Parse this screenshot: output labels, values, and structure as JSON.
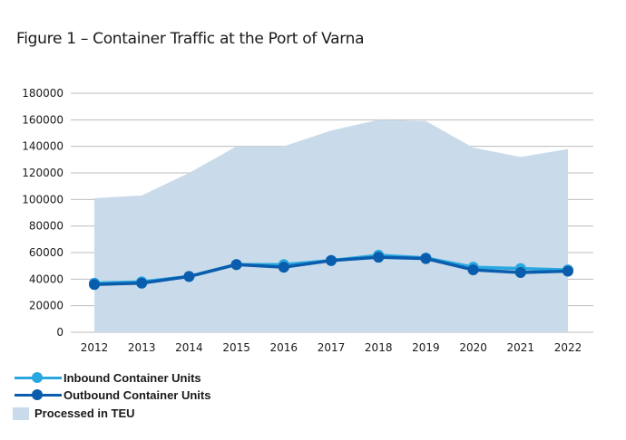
{
  "page": {
    "title": "Figure 1 – Container Traffic at the Port of Varna"
  },
  "colors": {
    "area": "#c9dbea",
    "inbound": "#29a8e0",
    "outbound": "#0a5cad",
    "grid": "#bdbdbd"
  },
  "chart_data": {
    "type": "line",
    "title": "Figure 1 – Container Traffic at the Port of Varna",
    "xlabel": "",
    "ylabel": "",
    "x": [
      "2012",
      "2013",
      "2014",
      "2015",
      "2016",
      "2017",
      "2018",
      "2019",
      "2020",
      "2021",
      "2022"
    ],
    "ylim": [
      0,
      180000
    ],
    "yticks": [
      "0",
      "20000",
      "40000",
      "60000",
      "80000",
      "100000",
      "120000",
      "140000",
      "160000",
      "180000"
    ],
    "grid": "horizontal",
    "legend_position": "bottom-left",
    "series": [
      {
        "name": "Inbound Container Units",
        "kind": "line-marker",
        "color": "#29a8e0",
        "values": [
          37000,
          38000,
          42000,
          51000,
          51000,
          54000,
          58000,
          56000,
          49000,
          48000,
          47000
        ]
      },
      {
        "name": "Outbound Container Units",
        "kind": "line-marker",
        "color": "#0a5cad",
        "values": [
          36000,
          37000,
          42000,
          51000,
          49000,
          54000,
          56500,
          55500,
          47000,
          45000,
          46000
        ]
      },
      {
        "name": "Processed in TEU",
        "kind": "area",
        "color": "#c9dbea",
        "values": [
          101000,
          103000,
          120000,
          140000,
          140000,
          152000,
          160000,
          159000,
          139000,
          132000,
          138000
        ]
      }
    ]
  }
}
